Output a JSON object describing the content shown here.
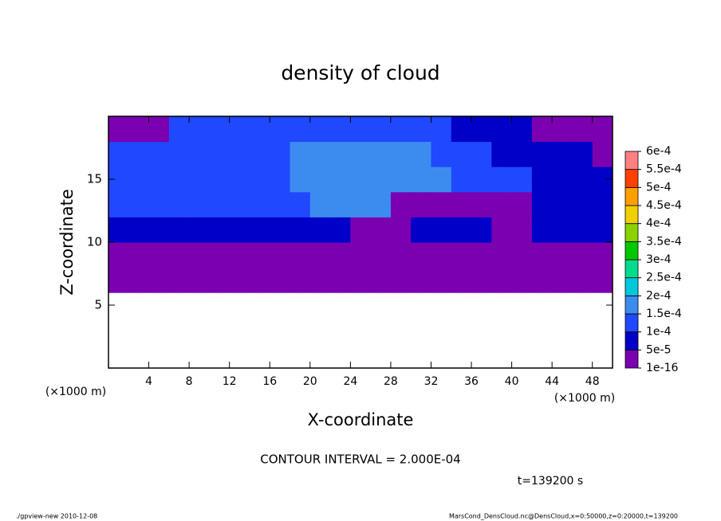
{
  "chart_data": {
    "type": "contour",
    "title": "density of cloud",
    "xlabel": "X-coordinate",
    "ylabel": "Z-coordinate",
    "xunit": "(×1000 m)",
    "yunit": "(×1000 m)",
    "annotation": "CONTOUR INTERVAL = 2.000E-04",
    "time_label": "t=139200 s",
    "footer_left": "./gpview-new  2010-12-08",
    "footer_right": "MarsCond_DensCloud.nc@DensCloud,x=0:50000,z=0:20000,t=139200",
    "xlim": [
      0,
      50
    ],
    "xticks": [
      4,
      8,
      12,
      16,
      20,
      24,
      28,
      32,
      36,
      40,
      44,
      48
    ],
    "ylim": [
      0,
      20
    ],
    "yticks": [
      5,
      10,
      15
    ],
    "x": [
      1,
      3,
      5,
      7,
      9,
      11,
      13,
      15,
      17,
      19,
      21,
      23,
      25,
      27,
      29,
      31,
      33,
      35,
      37,
      39,
      41,
      43,
      45,
      47,
      49
    ],
    "y": [
      1,
      3,
      5,
      7,
      9,
      11,
      13,
      15,
      17,
      19
    ],
    "values": [
      [
        null,
        null,
        null,
        null,
        null,
        null,
        null,
        null,
        null,
        null,
        null,
        null,
        null,
        null,
        null,
        null,
        null,
        null,
        null,
        null,
        null,
        null,
        null,
        null,
        null
      ],
      [
        null,
        null,
        null,
        null,
        null,
        null,
        null,
        null,
        null,
        null,
        null,
        null,
        null,
        null,
        null,
        null,
        null,
        null,
        null,
        null,
        null,
        null,
        null,
        null,
        null
      ],
      [
        null,
        null,
        null,
        null,
        null,
        null,
        null,
        null,
        null,
        null,
        null,
        null,
        null,
        null,
        null,
        null,
        null,
        null,
        null,
        null,
        null,
        null,
        null,
        null,
        null
      ],
      [
        3e-05,
        3e-05,
        3e-05,
        3e-05,
        3e-05,
        3e-05,
        3e-05,
        3e-05,
        3e-05,
        3e-05,
        3e-05,
        3e-05,
        3e-05,
        3e-05,
        3e-05,
        3e-05,
        3e-05,
        3e-05,
        3e-05,
        3e-05,
        3e-05,
        3e-05,
        3e-05,
        3e-05,
        3e-05
      ],
      [
        3e-05,
        3e-05,
        3e-05,
        3e-05,
        3e-05,
        3e-05,
        3e-05,
        3e-05,
        3e-05,
        3e-05,
        3e-05,
        3e-05,
        3e-05,
        3e-05,
        3e-05,
        3e-05,
        3e-05,
        3e-05,
        3e-05,
        3e-05,
        3e-05,
        3e-05,
        3e-05,
        3e-05,
        3e-05
      ],
      [
        7e-05,
        7e-05,
        7e-05,
        7e-05,
        7e-05,
        7e-05,
        7e-05,
        7e-05,
        7e-05,
        7e-05,
        7e-05,
        7e-05,
        3e-05,
        3e-05,
        3e-05,
        7e-05,
        7e-05,
        7e-05,
        7e-05,
        3e-05,
        3e-05,
        7e-05,
        7e-05,
        7e-05,
        7e-05
      ],
      [
        0.00012,
        0.00012,
        0.00012,
        0.00012,
        0.00012,
        0.00012,
        0.00012,
        0.00012,
        0.00012,
        0.00012,
        0.00017,
        0.00017,
        0.00017,
        0.00017,
        3e-05,
        3e-05,
        3e-05,
        3e-05,
        3e-05,
        3e-05,
        3e-05,
        7e-05,
        7e-05,
        7e-05,
        7e-05
      ],
      [
        0.00012,
        0.00012,
        0.00012,
        0.00012,
        0.00012,
        0.00012,
        0.00012,
        0.00012,
        0.00012,
        0.00017,
        0.00017,
        0.00017,
        0.00017,
        0.00017,
        0.00017,
        0.00017,
        0.00017,
        0.00012,
        0.00012,
        0.00012,
        0.00012,
        7e-05,
        7e-05,
        7e-05,
        7e-05
      ],
      [
        0.00012,
        0.00012,
        0.00012,
        0.00012,
        0.00012,
        0.00012,
        0.00012,
        0.00012,
        0.00012,
        0.00017,
        0.00017,
        0.00017,
        0.00017,
        0.00017,
        0.00017,
        0.00017,
        0.00012,
        0.00012,
        0.00012,
        7e-05,
        7e-05,
        7e-05,
        7e-05,
        7e-05,
        3e-05
      ],
      [
        3e-05,
        3e-05,
        3e-05,
        0.00012,
        0.00012,
        0.00012,
        0.00012,
        0.00012,
        0.00012,
        0.00012,
        0.00012,
        0.00012,
        0.00012,
        0.00012,
        0.00012,
        0.00012,
        0.00012,
        7e-05,
        7e-05,
        7e-05,
        7e-05,
        3e-05,
        3e-05,
        3e-05,
        3e-05
      ]
    ],
    "levels": [
      1e-16,
      {
        "value": 5e-05,
        "label": "5e-5"
      },
      {
        "value": 0.0001,
        "label": "1e-4"
      },
      {
        "value": 0.00015,
        "label": "1.5e-4"
      },
      {
        "value": 0.0002,
        "label": "2e-4"
      },
      {
        "value": 0.00025,
        "label": "2.5e-4"
      },
      {
        "value": 0.0003,
        "label": "3e-4"
      },
      {
        "value": 0.00035,
        "label": "3.5e-4"
      },
      {
        "value": 0.0004,
        "label": "4e-4"
      },
      {
        "value": 0.00045,
        "label": "4.5e-4"
      },
      {
        "value": 0.0005,
        "label": "5e-4"
      },
      {
        "value": 0.00055,
        "label": "5.5e-4"
      },
      {
        "value": 0.0006,
        "label": "6e-4"
      }
    ],
    "colors": [
      "#7a00b0",
      "#0000c8",
      "#2048ff",
      "#3c8cf0",
      "#00c8dc",
      "#00dc8c",
      "#00c800",
      "#8cd200",
      "#f0d000",
      "#ffa000",
      "#ff4000",
      "#ff8080"
    ]
  }
}
